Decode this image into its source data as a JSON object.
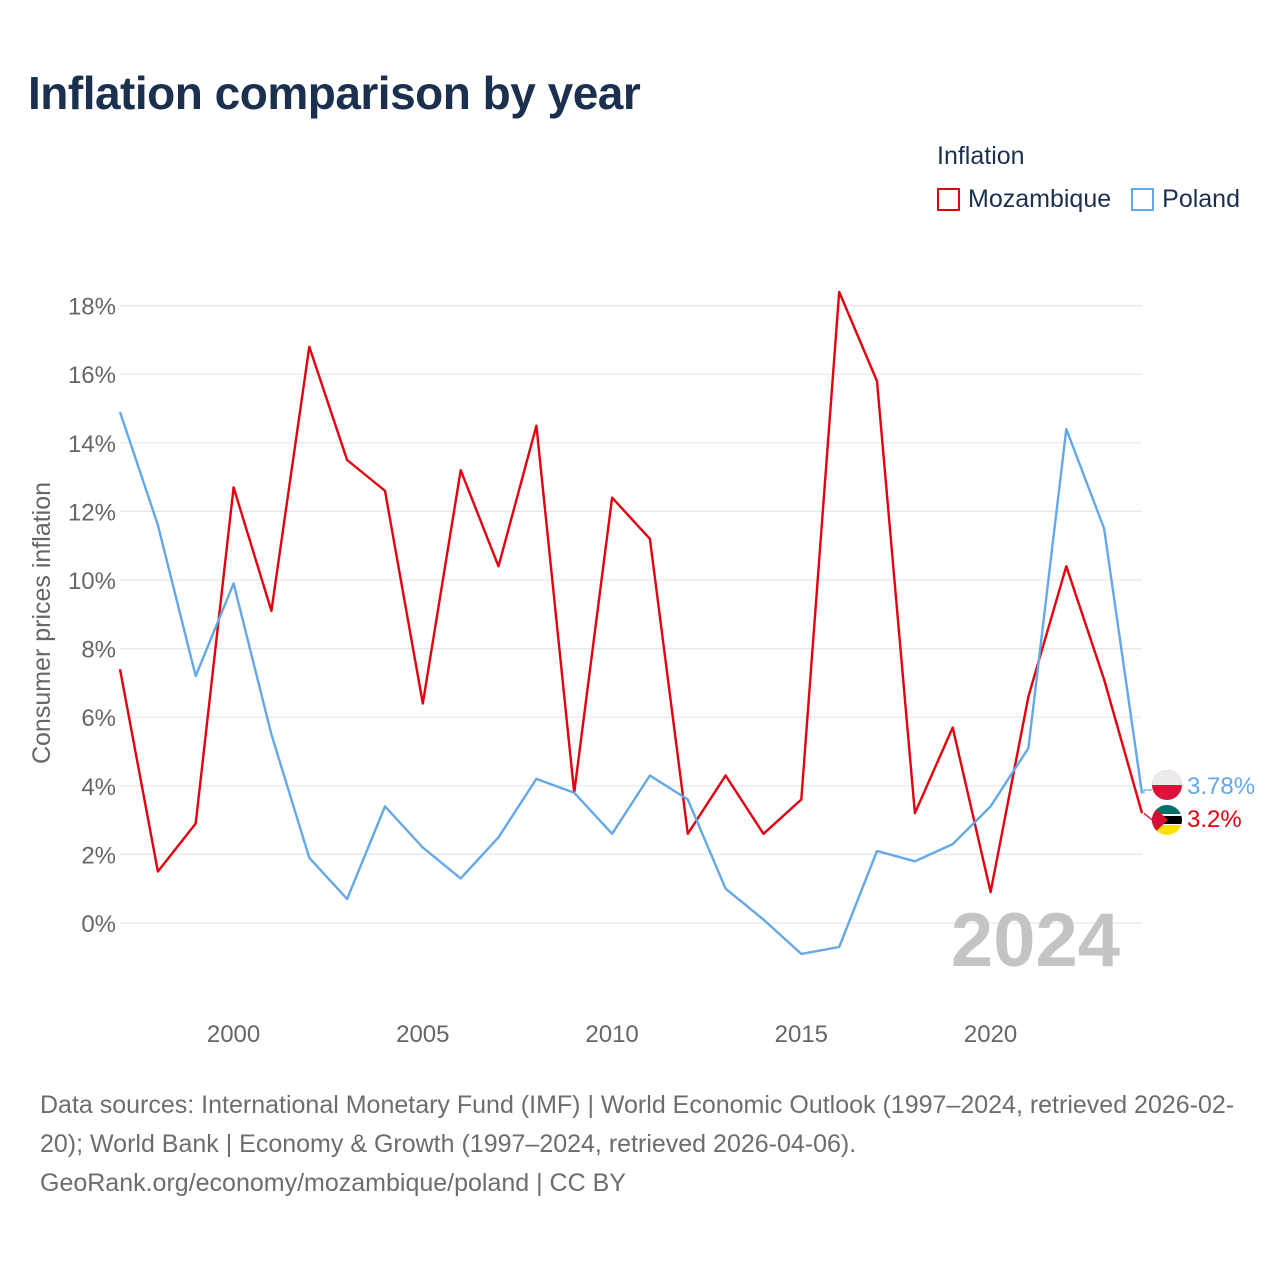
{
  "title": "Inflation comparison by year",
  "legend": {
    "title": "Inflation",
    "items": [
      {
        "label": "Mozambique",
        "color": "#e3000f"
      },
      {
        "label": "Poland",
        "color": "#64a8e8"
      }
    ]
  },
  "chart_data": {
    "type": "line",
    "ylabel": "Consumer prices inflation",
    "xlabel": "",
    "ylim": [
      -2,
      18.5
    ],
    "xlim": [
      1997,
      2024
    ],
    "y_ticks": [
      0,
      2,
      4,
      6,
      8,
      10,
      12,
      14,
      16,
      18
    ],
    "y_tick_labels": [
      "0%",
      "2%",
      "4%",
      "6%",
      "8%",
      "10%",
      "12%",
      "14%",
      "16%",
      "18%"
    ],
    "x_ticks": [
      2000,
      2005,
      2010,
      2015,
      2020
    ],
    "x_tick_labels": [
      "2000",
      "2005",
      "2010",
      "2015",
      "2020"
    ],
    "current_year": "2024",
    "grid": true,
    "x": [
      1997,
      1998,
      1999,
      2000,
      2001,
      2002,
      2003,
      2004,
      2005,
      2006,
      2007,
      2008,
      2009,
      2010,
      2011,
      2012,
      2013,
      2014,
      2015,
      2016,
      2017,
      2018,
      2019,
      2020,
      2021,
      2022,
      2023,
      2024
    ],
    "series": [
      {
        "name": "Mozambique",
        "color": "#e3000f",
        "end_label": "3.2%",
        "values": [
          7.4,
          1.5,
          2.9,
          12.7,
          9.1,
          16.8,
          13.5,
          12.6,
          6.4,
          13.2,
          10.4,
          14.5,
          3.8,
          12.4,
          11.2,
          2.6,
          4.3,
          2.6,
          3.6,
          18.4,
          15.8,
          3.2,
          5.7,
          0.9,
          6.6,
          10.4,
          7.1,
          3.2
        ]
      },
      {
        "name": "Poland",
        "color": "#64a8e8",
        "end_label": "3.78%",
        "values": [
          14.9,
          11.6,
          7.2,
          9.9,
          5.5,
          1.9,
          0.7,
          3.4,
          2.2,
          1.3,
          2.5,
          4.2,
          3.8,
          2.6,
          4.3,
          3.6,
          1.0,
          0.1,
          -0.9,
          -0.7,
          2.1,
          1.8,
          2.3,
          3.4,
          5.1,
          14.4,
          11.5,
          3.78
        ]
      }
    ]
  },
  "footer": {
    "line1": "Data sources: International Monetary Fund (IMF) | World Economic Outlook (1997–2024, retrieved 2026-02-20); World Bank | Economy & Growth (1997–2024, retrieved 2026-04-06).",
    "line2": "GeoRank.org/economy/mozambique/poland | CC BY"
  }
}
